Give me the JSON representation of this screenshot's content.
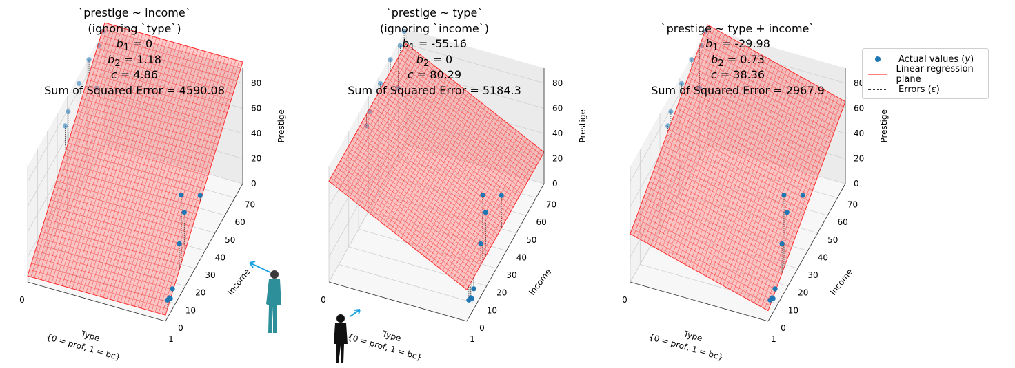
{
  "chart_data": [
    {
      "type": "surface3d",
      "title_lines": [
        "`prestige ~ income`",
        "(ignoring `type`)",
        "b1 = 0",
        "b2 = 1.18",
        "c = 4.86",
        "Sum of Squared Error = 4590.08"
      ],
      "b1": 0,
      "b2": 1.18,
      "c": 4.86,
      "x_label": "Type\n{0 = prof, 1 = bc}",
      "y_label": "Income",
      "z_label": "Prestige",
      "x_ticks": [
        "0",
        "1"
      ],
      "y_ticks": [
        "0",
        "10",
        "20",
        "30",
        "40",
        "50",
        "60",
        "70"
      ],
      "z_ticks": [
        "0",
        "20",
        "40",
        "60",
        "80"
      ],
      "xlim": [
        0,
        1
      ],
      "ylim": [
        0,
        78
      ],
      "zlim": [
        0,
        92
      ],
      "points": [
        {
          "type": 0,
          "income": 62,
          "prestige": 90
        },
        {
          "type": 0,
          "income": 72,
          "prestige": 87
        },
        {
          "type": 0,
          "income": 76,
          "prestige": 93
        },
        {
          "type": 0,
          "income": 52,
          "prestige": 85
        },
        {
          "type": 0,
          "income": 41,
          "prestige": 78
        },
        {
          "type": 0,
          "income": 38,
          "prestige": 71
        },
        {
          "type": 0,
          "income": 70,
          "prestige": 56
        },
        {
          "type": 1,
          "income": 16,
          "prestige": 78
        },
        {
          "type": 1,
          "income": 19,
          "prestige": 60
        },
        {
          "type": 1,
          "income": 14,
          "prestige": 42
        },
        {
          "type": 1,
          "income": 35,
          "prestige": 51
        },
        {
          "type": 1,
          "income": 4,
          "prestige": 13
        },
        {
          "type": 1,
          "income": 5,
          "prestige": 11
        },
        {
          "type": 1,
          "income": 7,
          "prestige": 16
        },
        {
          "type": 1,
          "income": 2,
          "prestige": 14
        }
      ]
    },
    {
      "type": "surface3d",
      "title_lines": [
        "`prestige ~ type`",
        "(ignoring `income`)",
        "b1 = -55.16",
        "b2 = 0",
        "c = 80.29",
        "Sum of Squared Error = 5184.3"
      ],
      "b1": -55.16,
      "b2": 0,
      "c": 80.29,
      "x_label": "Type\n{0 = prof, 1 = bc}",
      "y_label": "Income",
      "z_label": "Prestige",
      "x_ticks": [
        "0",
        "1"
      ],
      "y_ticks": [
        "0",
        "10",
        "20",
        "30",
        "40",
        "50",
        "60",
        "70"
      ],
      "z_ticks": [
        "0",
        "20",
        "40",
        "60",
        "80"
      ],
      "xlim": [
        0,
        1
      ],
      "ylim": [
        0,
        78
      ],
      "zlim": [
        0,
        92
      ]
    },
    {
      "type": "surface3d",
      "title_lines": [
        "`prestige ~ type + income`",
        "b1 = -29.98",
        "b2 = 0.73",
        "c = 38.36",
        "Sum of Squared Error = 2967.9"
      ],
      "b1": -29.98,
      "b2": 0.73,
      "c": 38.36,
      "x_label": "Type\n{0 = prof, 1 = bc}",
      "y_label": "Income",
      "z_label": "Prestige",
      "x_ticks": [
        "0",
        "1"
      ],
      "y_ticks": [
        "0",
        "10",
        "20",
        "30",
        "40",
        "50",
        "60",
        "70"
      ],
      "z_ticks": [
        "0",
        "20",
        "40",
        "60",
        "80"
      ],
      "xlim": [
        0,
        1
      ],
      "ylim": [
        0,
        78
      ],
      "zlim": [
        0,
        92
      ]
    }
  ],
  "legend": {
    "items": [
      {
        "label": "Actual values (y)",
        "kind": "points",
        "color": "#1f77b4"
      },
      {
        "label": "Linear regression plane",
        "kind": "line",
        "color": "#ff7f7f"
      },
      {
        "label": "Errors (ε)",
        "kind": "dotted",
        "color": "#333333"
      }
    ]
  },
  "colors": {
    "points": "#1f77b4",
    "plane": "#ff2a2a",
    "pane": "#f2f2f2",
    "grid": "#d0d0d0",
    "arrow": "#1aa3e0"
  }
}
